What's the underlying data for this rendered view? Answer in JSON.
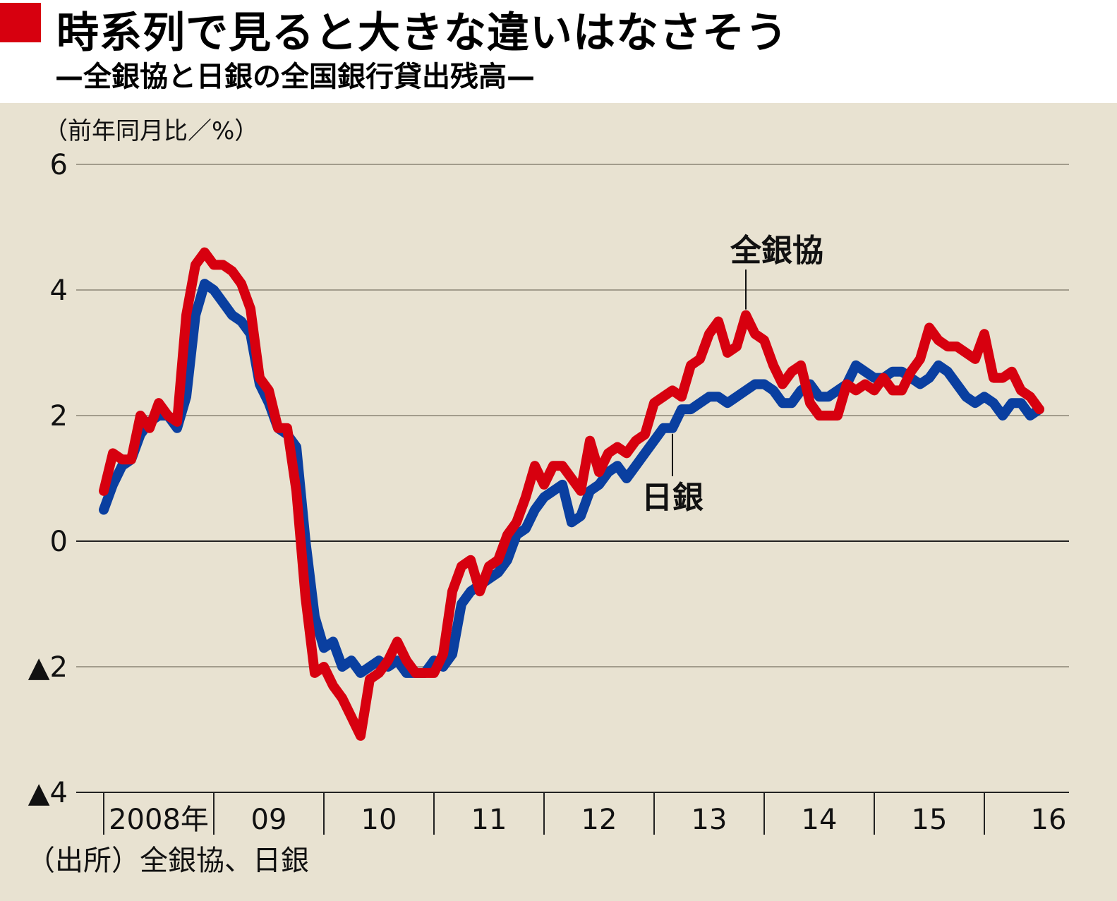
{
  "header": {
    "title": "時系列で見ると大きな違いはなさそう",
    "subtitle": "—全銀協と日銀の全国銀行貸出残高—"
  },
  "chart_data": {
    "type": "line",
    "unit_label": "（前年同月比／%）",
    "ylim": [
      -4,
      6
    ],
    "y_ticks": [
      {
        "value": 6,
        "label": "6"
      },
      {
        "value": 4,
        "label": "4"
      },
      {
        "value": 2,
        "label": "2"
      },
      {
        "value": 0,
        "label": "0"
      },
      {
        "value": -2,
        "label": "▲2"
      },
      {
        "value": -4,
        "label": "▲4"
      }
    ],
    "x_ticks": [
      "2008年",
      "09",
      "10",
      "11",
      "12",
      "13",
      "14",
      "15",
      "16"
    ],
    "x_start": "2008-01",
    "grid": true,
    "series": [
      {
        "name": "日銀",
        "color": "#0a3fa0",
        "values": [
          0.5,
          0.9,
          1.2,
          1.3,
          1.7,
          1.9,
          2.0,
          2.0,
          1.8,
          2.3,
          3.6,
          4.1,
          4.0,
          3.8,
          3.6,
          3.5,
          3.3,
          2.5,
          2.2,
          1.8,
          1.7,
          1.5,
          0.0,
          -1.2,
          -1.7,
          -1.6,
          -2.0,
          -1.9,
          -2.1,
          -2.0,
          -1.9,
          -2.0,
          -1.9,
          -2.1,
          -2.1,
          -2.1,
          -1.9,
          -2.0,
          -1.8,
          -1.0,
          -0.8,
          -0.7,
          -0.6,
          -0.5,
          -0.3,
          0.1,
          0.2,
          0.5,
          0.7,
          0.8,
          0.9,
          0.3,
          0.4,
          0.8,
          0.9,
          1.1,
          1.2,
          1.0,
          1.2,
          1.4,
          1.6,
          1.8,
          1.8,
          2.1,
          2.1,
          2.2,
          2.3,
          2.3,
          2.2,
          2.3,
          2.4,
          2.5,
          2.5,
          2.4,
          2.2,
          2.2,
          2.4,
          2.5,
          2.3,
          2.3,
          2.4,
          2.5,
          2.8,
          2.7,
          2.6,
          2.6,
          2.7,
          2.7,
          2.6,
          2.5,
          2.6,
          2.8,
          2.7,
          2.5,
          2.3,
          2.2,
          2.3,
          2.2,
          2.0,
          2.2,
          2.2,
          2.0,
          2.1
        ],
        "annotation": "日銀"
      },
      {
        "name": "全銀協",
        "color": "#d7000f",
        "values": [
          0.8,
          1.4,
          1.3,
          1.3,
          2.0,
          1.8,
          2.2,
          2.0,
          1.9,
          3.6,
          4.4,
          4.6,
          4.4,
          4.4,
          4.3,
          4.1,
          3.7,
          2.6,
          2.4,
          1.8,
          1.8,
          0.8,
          -0.9,
          -2.1,
          -2.0,
          -2.3,
          -2.5,
          -2.8,
          -3.1,
          -2.2,
          -2.1,
          -1.9,
          -1.6,
          -1.9,
          -2.1,
          -2.1,
          -2.1,
          -1.8,
          -0.8,
          -0.4,
          -0.3,
          -0.8,
          -0.4,
          -0.3,
          0.1,
          0.3,
          0.7,
          1.2,
          0.9,
          1.2,
          1.2,
          1.0,
          0.8,
          1.6,
          1.1,
          1.4,
          1.5,
          1.4,
          1.6,
          1.7,
          2.2,
          2.3,
          2.4,
          2.3,
          2.8,
          2.9,
          3.3,
          3.5,
          3.0,
          3.1,
          3.6,
          3.3,
          3.2,
          2.8,
          2.5,
          2.7,
          2.8,
          2.2,
          2.0,
          2.0,
          2.0,
          2.5,
          2.4,
          2.5,
          2.4,
          2.6,
          2.4,
          2.4,
          2.7,
          2.9,
          3.4,
          3.2,
          3.1,
          3.1,
          3.0,
          2.9,
          3.3,
          2.6,
          2.6,
          2.7,
          2.4,
          2.3,
          2.1
        ],
        "annotation": "全銀協"
      }
    ]
  },
  "footer": {
    "source": "（出所）全銀協、日銀"
  }
}
